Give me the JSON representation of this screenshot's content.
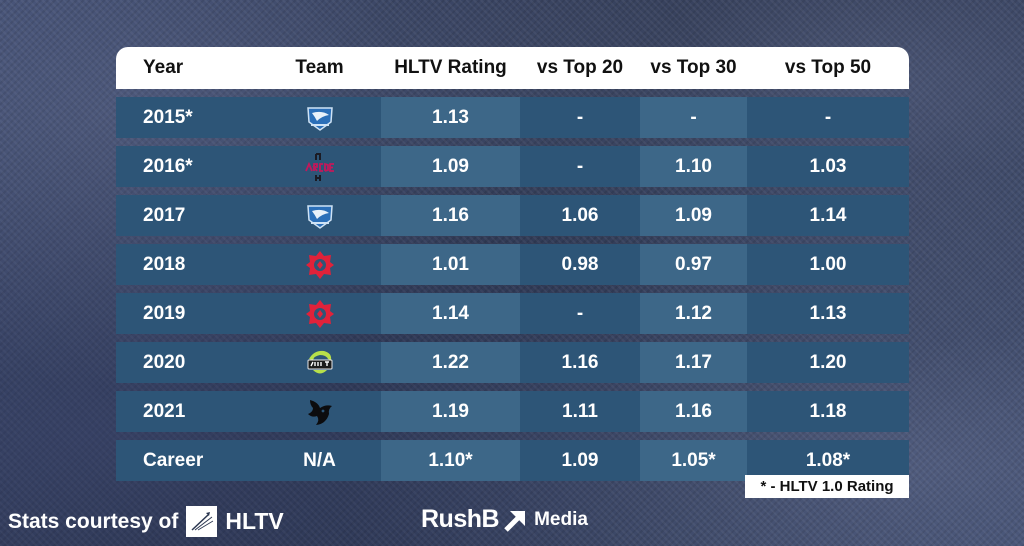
{
  "table": {
    "headers": [
      "Year",
      "Team",
      "HLTV Rating",
      "vs Top 20",
      "vs Top 30",
      "vs Top 50"
    ],
    "rows": [
      {
        "year": "2015*",
        "team_icon": "virtus-pro-icon",
        "team": "",
        "hltv": "1.13",
        "t20": "-",
        "t30": "-",
        "t50": "-"
      },
      {
        "year": "2016*",
        "team_icon": "arcade-icon",
        "team": "",
        "hltv": "1.09",
        "t20": "-",
        "t30": "1.10",
        "t50": "1.03"
      },
      {
        "year": "2017",
        "team_icon": "virtus-pro-icon",
        "team": "",
        "hltv": "1.16",
        "t20": "1.06",
        "t30": "1.09",
        "t50": "1.14"
      },
      {
        "year": "2018",
        "team_icon": "gambit-icon",
        "team": "",
        "hltv": "1.01",
        "t20": "0.98",
        "t30": "0.97",
        "t50": "1.00"
      },
      {
        "year": "2019",
        "team_icon": "gambit-icon",
        "team": "",
        "hltv": "1.14",
        "t20": "-",
        "t30": "1.12",
        "t50": "1.13"
      },
      {
        "year": "2020",
        "team_icon": "spirit-old-icon",
        "team": "",
        "hltv": "1.22",
        "t20": "1.16",
        "t30": "1.17",
        "t50": "1.20"
      },
      {
        "year": "2021",
        "team_icon": "spirit-dragon-icon",
        "team": "",
        "hltv": "1.19",
        "t20": "1.11",
        "t30": "1.16",
        "t50": "1.18"
      },
      {
        "year": "Career",
        "team_icon": "",
        "team": "N/A",
        "hltv": "1.10*",
        "t20": "1.09",
        "t30": "1.05*",
        "t50": "1.08*"
      }
    ]
  },
  "footnote": "* - HLTV 1.0 Rating",
  "credit": {
    "prefix": "Stats courtesy of",
    "source": "HLTV"
  },
  "brand": {
    "main": "RushB",
    "sub": "Media"
  },
  "colors": {
    "row": "#2d5577",
    "row_highlight": "#3d6788",
    "header": "#ffffff",
    "gambit_red": "#e0223a"
  }
}
